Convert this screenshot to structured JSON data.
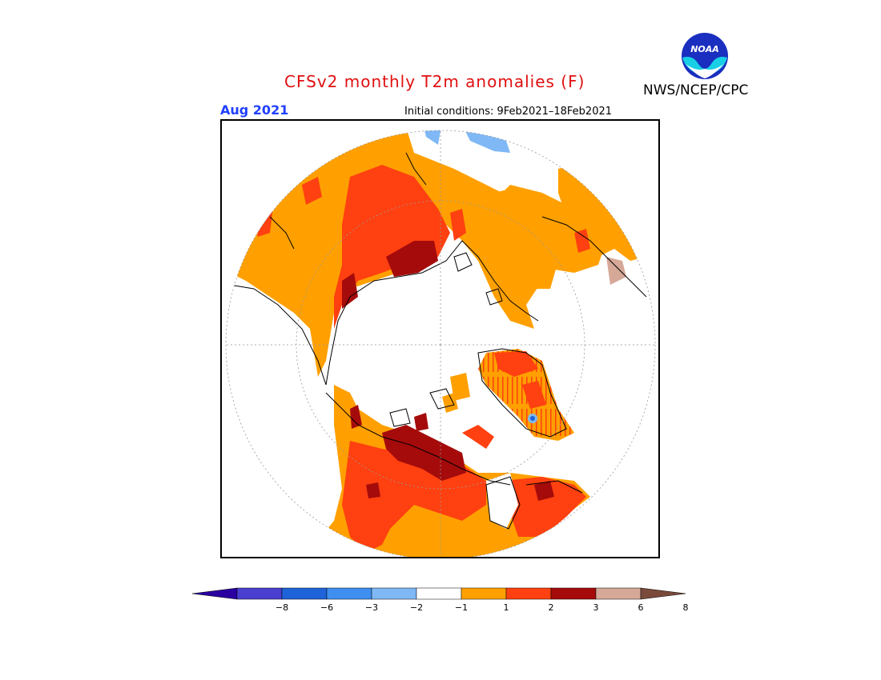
{
  "header": {
    "title": "CFSv2 monthly T2m anomalies (F)",
    "month": "Aug 2021",
    "initial_conditions": "Initial conditions: 9Feb2021–18Feb2021",
    "agency": "NWS/NCEP/CPC",
    "logo_text": "NOAA"
  },
  "colorbar": {
    "tick_labels": [
      "−8",
      "−6",
      "−3",
      "−2",
      "−1",
      "1",
      "2",
      "3",
      "6",
      "8"
    ],
    "colors": [
      "#2a00a0",
      "#4b3fd0",
      "#1f63d9",
      "#3f8ff0",
      "#7fb8f5",
      "#ffffff",
      "#ffa000",
      "#ff4010",
      "#a50b0b",
      "#d6a898",
      "#7a4a3a"
    ]
  },
  "palette": {
    "light_orange": "#ffa000",
    "orange_red": "#ff4010",
    "dark_red": "#a50b0b",
    "light_blue": "#7fb8f5",
    "blue": "#1f63d9"
  }
}
